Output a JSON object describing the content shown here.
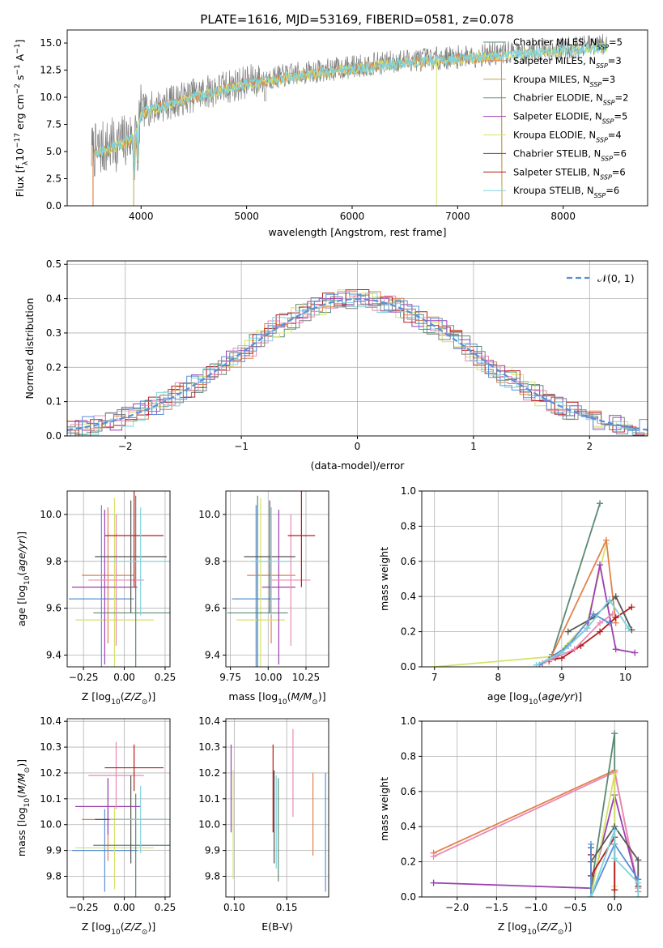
{
  "title": "PLATE=1616, MJD=53169, FIBERID=0581, z=0.078",
  "colors": {
    "miles_chabrier": "#5b8a72",
    "miles_salpeter": "#e1814b",
    "miles_kroupa": "#c4a050",
    "elodie_chabrier": "#6a8a7a",
    "elodie_salpeter": "#9b3fb0",
    "elodie_kroupa": "#d6e26a",
    "stelib_chabrier": "#555555",
    "stelib_salpeter": "#b71c1c",
    "stelib_kroupa": "#7fd3df",
    "blue": "#5a8fd6",
    "pink": "#e989b4",
    "grey": "#7f7f7f"
  },
  "chart_data": [
    {
      "type": "line",
      "panel": "spectrum",
      "xlabel": "wavelength [Angstrom, rest frame]",
      "ylabel": "Flux [f_λ 10^-17 erg cm^-2 s^-1 A^-1]",
      "xlim": [
        3300,
        8800
      ],
      "ylim": [
        0,
        16.2
      ],
      "xticks": [
        4000,
        5000,
        6000,
        7000,
        8000
      ],
      "yticks": [
        0.0,
        2.5,
        5.0,
        7.5,
        10.0,
        12.5,
        15.0
      ],
      "ytick_labels": [
        "0.0",
        "2.5",
        "5.0",
        "7.5",
        "10.0",
        "12.5",
        "15.0"
      ],
      "legend": "right",
      "legend_labels": [
        "Chabrier MILES, N_SSP=5",
        "Salpeter MILES, N_SSP=3",
        "Kroupa MILES, N_SSP=3",
        "Chabrier ELODIE, N_SSP=2",
        "Salpeter ELODIE, N_SSP=5",
        "Kroupa ELODIE, N_SSP=4",
        "Chabrier STELIB, N_SSP=6",
        "Salpeter STELIB, N_SSP=6",
        "Kroupa STELIB, N_SSP=6"
      ],
      "legend_prefix": [
        "Chabrier MILES, N",
        "Salpeter MILES, N",
        "Kroupa MILES, N",
        "Chabrier ELODIE, N",
        "Salpeter ELODIE, N",
        "Kroupa ELODIE, N",
        "Chabrier STELIB, N",
        "Salpeter STELIB, N",
        "Kroupa STELIB, N"
      ],
      "legend_sub": "SSP",
      "legend_n": [
        "=5",
        "=3",
        "=3",
        "=2",
        "=5",
        "=4",
        "=6",
        "=6",
        "=6"
      ],
      "continuum_x": [
        3550,
        3800,
        3950,
        4000,
        4500,
        5000,
        5500,
        6000,
        6500,
        7000,
        7500,
        8000,
        8400
      ],
      "continuum_y": [
        5.0,
        5.8,
        6.5,
        8.7,
        10.2,
        11.4,
        12.2,
        12.8,
        13.4,
        13.7,
        14.1,
        14.5,
        14.8
      ]
    },
    {
      "type": "histogram",
      "panel": "residuals",
      "xlabel": "(data-model)/error",
      "ylabel": "Normed distribution",
      "xlim": [
        -2.5,
        2.5
      ],
      "ylim": [
        0,
        0.51
      ],
      "xticks": [
        -2,
        -1,
        0,
        1,
        2
      ],
      "xtick_labels": [
        "−2",
        "−1",
        "0",
        "1",
        "2"
      ],
      "yticks": [
        0.0,
        0.1,
        0.2,
        0.3,
        0.4,
        0.5
      ],
      "ytick_labels": [
        "0.0",
        "0.1",
        "0.2",
        "0.3",
        "0.4",
        "0.5"
      ],
      "legend": "upper right",
      "reference_label": "𝒩(0, 1)",
      "bin_width": 0.1
    },
    {
      "type": "errorbar",
      "panel": "age_vs_Z",
      "xlabel": "Z [log10(Z/Z⊙)]",
      "ylabel": "age [log10(age/yr)]",
      "xlim": [
        -0.35,
        0.28
      ],
      "ylim": [
        9.35,
        10.1
      ],
      "xticks": [
        -0.25,
        0.0,
        0.25
      ],
      "xtick_labels": [
        "−0.25",
        "0.00",
        "0.25"
      ],
      "yticks": [
        9.4,
        9.6,
        9.8,
        10.0
      ],
      "ytick_labels": [
        "9.4",
        "9.6",
        "9.8",
        "10.0"
      ],
      "points": [
        {
          "x": -0.14,
          "y": 9.64,
          "xerr": 0.2,
          "yerr": 0.4,
          "color": "#5a8fd6"
        },
        {
          "x": -0.1,
          "y": 9.74,
          "xerr": 0.16,
          "yerr": 0.29,
          "color": "#e1814b"
        },
        {
          "x": -0.06,
          "y": 9.55,
          "xerr": 0.24,
          "yerr": 0.52,
          "color": "#d6e26a"
        },
        {
          "x": 0.07,
          "y": 9.58,
          "xerr": 0.26,
          "yerr": 0.5,
          "color": "#5b8a72"
        },
        {
          "x": -0.12,
          "y": 9.69,
          "xerr": 0.2,
          "yerr": 0.33,
          "color": "#9b3fb0"
        },
        {
          "x": -0.05,
          "y": 9.72,
          "xerr": 0.17,
          "yerr": 0.28,
          "color": "#e989b4"
        },
        {
          "x": 0.06,
          "y": 9.91,
          "xerr": 0.18,
          "yerr": 0.22,
          "color": "#b71c1c"
        },
        {
          "x": 0.04,
          "y": 9.82,
          "xerr": 0.22,
          "yerr": 0.24,
          "color": "#555555"
        },
        {
          "x": 0.1,
          "y": 9.8,
          "xerr": 0.19,
          "yerr": 0.23,
          "color": "#7fd3df"
        }
      ]
    },
    {
      "type": "errorbar",
      "panel": "age_vs_mass",
      "xlabel": "mass [log10(M/M⊙)]",
      "ylabel": "",
      "xlim": [
        9.72,
        10.4
      ],
      "ylim": [
        9.35,
        10.1
      ],
      "xticks": [
        9.75,
        10.0,
        10.25
      ],
      "xtick_labels": [
        "9.75",
        "10.00",
        "10.25"
      ],
      "yticks": [
        9.4,
        9.6,
        9.8,
        10.0
      ],
      "ytick_labels": [
        "9.4",
        "9.6",
        "9.8",
        "10.0"
      ],
      "points": [
        {
          "x": 9.92,
          "y": 9.64,
          "xerr": 0.16,
          "yerr": 0.4,
          "color": "#5a8fd6"
        },
        {
          "x": 10.02,
          "y": 9.74,
          "xerr": 0.16,
          "yerr": 0.29,
          "color": "#e1814b"
        },
        {
          "x": 9.95,
          "y": 9.55,
          "xerr": 0.16,
          "yerr": 0.52,
          "color": "#d6e26a"
        },
        {
          "x": 9.93,
          "y": 9.58,
          "xerr": 0.2,
          "yerr": 0.5,
          "color": "#5b8a72"
        },
        {
          "x": 10.07,
          "y": 9.69,
          "xerr": 0.11,
          "yerr": 0.33,
          "color": "#9b3fb0"
        },
        {
          "x": 10.15,
          "y": 9.72,
          "xerr": 0.13,
          "yerr": 0.28,
          "color": "#e989b4"
        },
        {
          "x": 10.22,
          "y": 9.91,
          "xerr": 0.09,
          "yerr": 0.22,
          "color": "#b71c1c"
        },
        {
          "x": 10.01,
          "y": 9.82,
          "xerr": 0.17,
          "yerr": 0.24,
          "color": "#555555"
        },
        {
          "x": 10.02,
          "y": 9.8,
          "xerr": 0.13,
          "yerr": 0.23,
          "color": "#7fd3df"
        }
      ]
    },
    {
      "type": "line",
      "panel": "weight_vs_age",
      "xlabel": "age [log10(age/yr)]",
      "ylabel": "mass weight",
      "xlim": [
        6.8,
        10.35
      ],
      "ylim": [
        0,
        1.0
      ],
      "xticks": [
        7,
        8,
        9,
        10
      ],
      "xtick_labels": [
        "7",
        "8",
        "9",
        "10"
      ],
      "yticks": [
        0.0,
        0.2,
        0.4,
        0.6,
        0.8,
        1.0
      ],
      "ytick_labels": [
        "0.0",
        "0.2",
        "0.4",
        "0.6",
        "0.8",
        "1.0"
      ],
      "series": [
        {
          "color": "#d6e26a",
          "x": [
            7.0,
            8.9,
            9.4,
            9.7
          ],
          "y": [
            0.0,
            0.06,
            0.25,
            0.7
          ]
        },
        {
          "color": "#5b8a72",
          "x": [
            8.85,
            9.6
          ],
          "y": [
            0.07,
            0.93
          ]
        },
        {
          "color": "#e1814b",
          "x": [
            8.8,
            9.7,
            9.85
          ],
          "y": [
            0.03,
            0.72,
            0.25
          ]
        },
        {
          "color": "#9b3fb0",
          "x": [
            8.9,
            9.4,
            9.6,
            9.85,
            10.15
          ],
          "y": [
            0.05,
            0.22,
            0.58,
            0.1,
            0.08
          ]
        },
        {
          "color": "#b71c1c",
          "x": [
            8.8,
            9.0,
            9.3,
            9.6,
            9.85,
            10.1
          ],
          "y": [
            0.04,
            0.05,
            0.12,
            0.2,
            0.28,
            0.34
          ]
        },
        {
          "color": "#555555",
          "x": [
            9.1,
            9.5,
            9.85,
            10.1
          ],
          "y": [
            0.2,
            0.28,
            0.4,
            0.21
          ]
        },
        {
          "color": "#e989b4",
          "x": [
            8.7,
            9.2,
            9.6,
            9.8
          ],
          "y": [
            0.02,
            0.1,
            0.25,
            0.3
          ]
        },
        {
          "color": "#5a8fd6",
          "x": [
            8.65,
            9.1,
            9.5,
            9.75
          ],
          "y": [
            0.01,
            0.12,
            0.3,
            0.25
          ]
        },
        {
          "color": "#7fd3df",
          "x": [
            8.6,
            9.0,
            9.4,
            9.75,
            10.05
          ],
          "y": [
            0.01,
            0.08,
            0.22,
            0.38,
            0.22
          ]
        }
      ]
    },
    {
      "type": "errorbar",
      "panel": "mass_vs_Z",
      "xlabel": "Z [log10(Z/Z⊙)]",
      "ylabel": "mass [log10(M/M⊙)]",
      "xlim": [
        -0.35,
        0.28
      ],
      "ylim": [
        9.72,
        10.41
      ],
      "xticks": [
        -0.25,
        0.0,
        0.25
      ],
      "xtick_labels": [
        "−0.25",
        "0.00",
        "0.25"
      ],
      "yticks": [
        9.8,
        9.9,
        10.0,
        10.1,
        10.2,
        10.3,
        10.4
      ],
      "ytick_labels": [
        "9.8",
        "9.9",
        "10.0",
        "10.1",
        "10.2",
        "10.3",
        "10.4"
      ],
      "points": [
        {
          "x": -0.12,
          "y": 9.9,
          "xerr": 0.2,
          "yerr": 0.16,
          "color": "#5a8fd6"
        },
        {
          "x": -0.1,
          "y": 10.02,
          "xerr": 0.16,
          "yerr": 0.16,
          "color": "#e1814b"
        },
        {
          "x": -0.06,
          "y": 9.91,
          "xerr": 0.24,
          "yerr": 0.16,
          "color": "#d6e26a"
        },
        {
          "x": 0.07,
          "y": 9.92,
          "xerr": 0.26,
          "yerr": 0.2,
          "color": "#5b8a72"
        },
        {
          "x": -0.1,
          "y": 10.07,
          "xerr": 0.2,
          "yerr": 0.11,
          "color": "#9b3fb0"
        },
        {
          "x": -0.05,
          "y": 10.19,
          "xerr": 0.17,
          "yerr": 0.13,
          "color": "#e989b4"
        },
        {
          "x": 0.06,
          "y": 10.22,
          "xerr": 0.18,
          "yerr": 0.09,
          "color": "#b71c1c"
        },
        {
          "x": 0.04,
          "y": 10.02,
          "xerr": 0.22,
          "yerr": 0.17,
          "color": "#555555"
        },
        {
          "x": 0.1,
          "y": 10.02,
          "xerr": 0.19,
          "yerr": 0.13,
          "color": "#7fd3df"
        }
      ]
    },
    {
      "type": "errorbar",
      "panel": "mass_vs_EBV",
      "xlabel": "E(B-V)",
      "ylabel": "",
      "xlim": [
        0.092,
        0.19
      ],
      "ylim": [
        9.72,
        10.41
      ],
      "xticks": [
        0.1,
        0.15
      ],
      "xtick_labels": [
        "0.10",
        "0.15"
      ],
      "yticks": [
        9.8,
        9.9,
        10.0,
        10.1,
        10.2,
        10.3,
        10.4
      ],
      "ytick_labels": [
        "9.8",
        "9.9",
        "10.0",
        "10.1",
        "10.2",
        "10.3",
        "10.4"
      ],
      "points": [
        {
          "x": 0.187,
          "y": 9.97,
          "xerr": 0,
          "yerr": 0.23,
          "color": "#5a8fd6"
        },
        {
          "x": 0.175,
          "y": 10.04,
          "xerr": 0,
          "yerr": 0.16,
          "color": "#e1814b"
        },
        {
          "x": 0.099,
          "y": 10.0,
          "xerr": 0,
          "yerr": 0.21,
          "color": "#d6e26a"
        },
        {
          "x": 0.142,
          "y": 9.98,
          "xerr": 0,
          "yerr": 0.2,
          "color": "#5b8a72"
        },
        {
          "x": 0.097,
          "y": 10.14,
          "xerr": 0,
          "yerr": 0.17,
          "color": "#9b3fb0"
        },
        {
          "x": 0.156,
          "y": 10.2,
          "xerr": 0,
          "yerr": 0.17,
          "color": "#e989b4"
        },
        {
          "x": 0.137,
          "y": 10.14,
          "xerr": 0,
          "yerr": 0.17,
          "color": "#b71c1c"
        },
        {
          "x": 0.138,
          "y": 10.03,
          "xerr": 0,
          "yerr": 0.18,
          "color": "#555555"
        },
        {
          "x": 0.14,
          "y": 10.01,
          "xerr": 0,
          "yerr": 0.18,
          "color": "#7fd3df"
        }
      ]
    },
    {
      "type": "line",
      "panel": "weight_vs_Z",
      "xlabel": "Z [log10(Z/Z⊙)]",
      "ylabel": "mass weight",
      "xlim": [
        -2.45,
        0.42
      ],
      "ylim": [
        0,
        1.0
      ],
      "xticks": [
        -2.0,
        -1.5,
        -1.0,
        -0.5,
        0.0
      ],
      "xtick_labels": [
        "−2.0",
        "−1.5",
        "−1.0",
        "−0.5",
        "0.0"
      ],
      "yticks": [
        0.0,
        0.2,
        0.4,
        0.6,
        0.8,
        1.0
      ],
      "ytick_labels": [
        "0.0",
        "0.2",
        "0.4",
        "0.6",
        "0.8",
        "1.0"
      ],
      "series": [
        {
          "color": "#e1814b",
          "x": [
            -2.3,
            0.0,
            0.3
          ],
          "y": [
            0.25,
            0.72,
            0.03
          ]
        },
        {
          "color": "#e989b4",
          "x": [
            -2.3,
            0.0,
            0.3
          ],
          "y": [
            0.23,
            0.71,
            0.05
          ]
        },
        {
          "color": "#9b3fb0",
          "x": [
            -2.3,
            -0.3,
            0.0,
            0.3
          ],
          "y": [
            0.08,
            0.05,
            0.58,
            0.06
          ]
        },
        {
          "color": "#5b8a72",
          "x": [
            -0.3,
            0.0,
            0.0
          ],
          "y": [
            0.05,
            0.93,
            0.0
          ]
        },
        {
          "color": "#d6e26a",
          "x": [
            -0.3,
            0.0,
            0.0
          ],
          "y": [
            0.0,
            0.7,
            0.06
          ]
        },
        {
          "color": "#555555",
          "x": [
            -0.3,
            -0.3,
            0.0,
            0.3,
            0.3
          ],
          "y": [
            0.28,
            0.2,
            0.4,
            0.21,
            0.06
          ]
        },
        {
          "color": "#b71c1c",
          "x": [
            -0.3,
            -0.3,
            0.0,
            0.0
          ],
          "y": [
            0.24,
            0.12,
            0.34,
            0.04
          ]
        },
        {
          "color": "#5a8fd6",
          "x": [
            -0.3,
            -0.3,
            0.0,
            0.3
          ],
          "y": [
            0.3,
            0.0,
            0.3,
            0.1
          ]
        },
        {
          "color": "#7fd3df",
          "x": [
            -0.3,
            0.0,
            0.0,
            0.3,
            0.3
          ],
          "y": [
            0.0,
            0.38,
            0.22,
            0.08,
            0.0
          ]
        }
      ]
    }
  ]
}
